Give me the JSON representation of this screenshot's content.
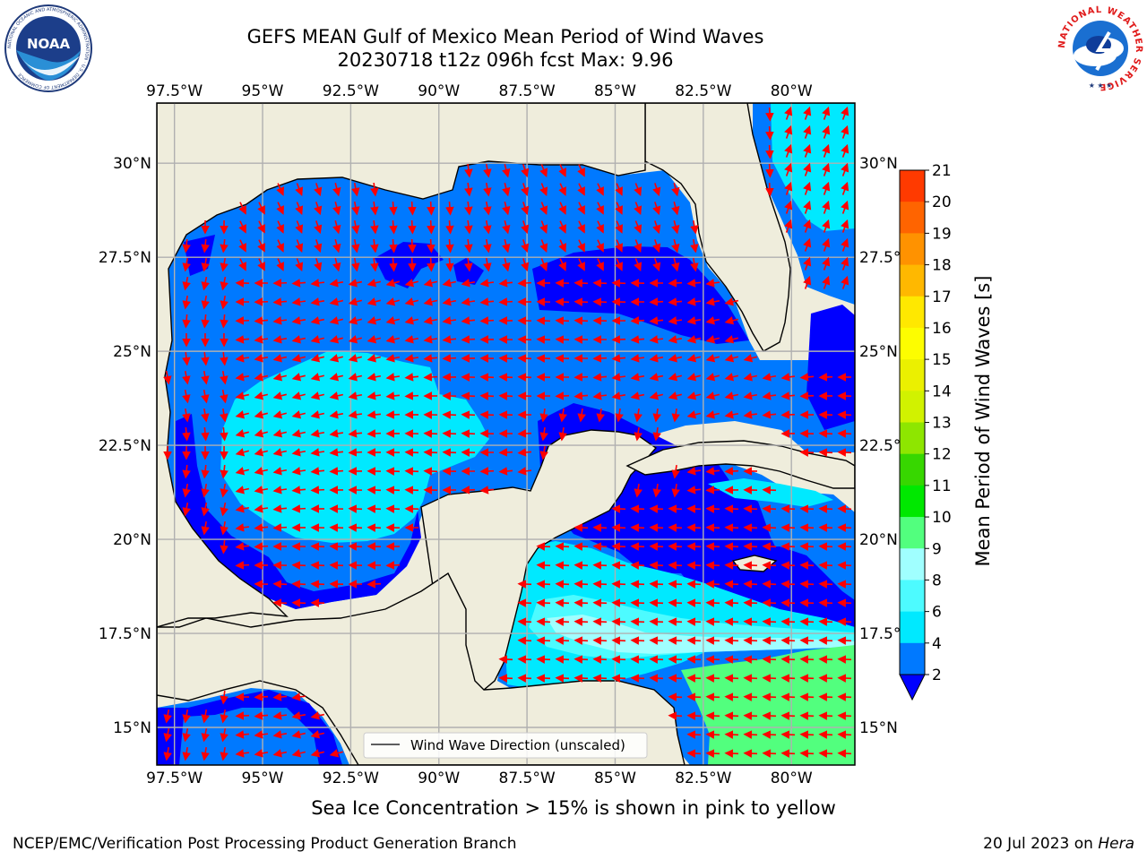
{
  "title": {
    "line1": "GEFS MEAN Gulf of Mexico Mean Period of Wind Waves",
    "line2": "20230718 t12z 096h fcst   Max: 9.96"
  },
  "axes": {
    "lon_ticks": [
      "97.5°W",
      "95°W",
      "92.5°W",
      "90°W",
      "87.5°W",
      "85°W",
      "82.5°W",
      "80°W"
    ],
    "lat_ticks": [
      "30°N",
      "27.5°N",
      "25°N",
      "22.5°N",
      "20°N",
      "17.5°N",
      "15°N"
    ],
    "lon_range": [
      -98,
      -78.2
    ],
    "lat_range": [
      14,
      31.6
    ]
  },
  "legend": {
    "label": "Wind Wave Direction (unscaled)"
  },
  "colorbar": {
    "label": "Mean Period of Wind Waves [s]",
    "ticks": [
      "2",
      "4",
      "6",
      "8",
      "9",
      "10",
      "11",
      "12",
      "13",
      "14",
      "15",
      "16",
      "17",
      "18",
      "19",
      "20",
      "21"
    ],
    "colors": [
      "#0079ff",
      "#00e9ff",
      "#4dfbff",
      "#a0ffff",
      "#52ff7e",
      "#00e800",
      "#37d700",
      "#8ee600",
      "#d1f200",
      "#ebf000",
      "#fdfd00",
      "#ffe800",
      "#ffb800",
      "#ff9200",
      "#ff6400",
      "#ff3a00",
      "#ff0000"
    ],
    "under_color": "#0000ff"
  },
  "note": "Sea Ice Concentration > 15% is shown in pink to yellow",
  "footer": {
    "left": "NCEP/EMC/Verification Post Processing Product Generation Branch",
    "right_prefix": "20 Jul 2023 on ",
    "right_host": "Hera"
  },
  "logos": {
    "noaa_text": "NOAA",
    "noaa_ring": "NATIONAL OCEANIC AND ATMOSPHERIC ADMINISTRATION · U.S. DEPARTMENT OF COMMERCE",
    "nws_ring": "NATIONAL WEATHER SERVICE"
  },
  "map_colors": {
    "land": "#efeddc",
    "lt2": "#0000ff",
    "p2_4": "#0079ff",
    "p4_6": "#00e9ff",
    "p6_8": "#4dfbff",
    "p8_9": "#a0ffff",
    "p9_10": "#52ff7e",
    "grid": "#b0b0b0",
    "arrow": "#ff0000"
  }
}
